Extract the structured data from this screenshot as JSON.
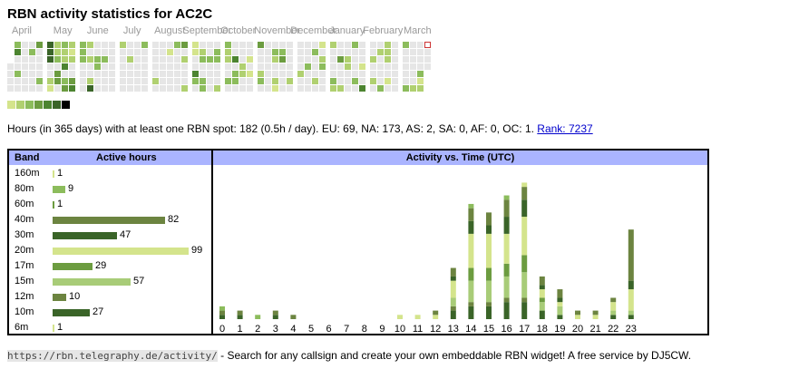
{
  "title": "RBN activity statistics for AC2C",
  "colors": {
    "empty": "#e6e6e6",
    "levels": [
      "#d4e48c",
      "#b0d070",
      "#8cbc5c",
      "#6c9c40",
      "#4c8430",
      "#3a6428",
      "#000000"
    ],
    "highlight": "#cc3333",
    "header": "#aab4ff",
    "link": "#0000cc"
  },
  "calendar": {
    "months": [
      "April",
      "May",
      "June",
      "July",
      "August",
      "September",
      "October",
      "November",
      "December",
      "January",
      "February",
      "March"
    ],
    "month_start_weeks": [
      0,
      5,
      9,
      14,
      18,
      23,
      27,
      31,
      36,
      40,
      45,
      49
    ],
    "week_count": 53,
    "first_weekday": 3,
    "days": 365,
    "today_index": 361,
    "active": [
      [
        4,
        3
      ],
      [
        5,
        5
      ],
      [
        8,
        3
      ],
      [
        19,
        3
      ],
      [
        25,
        4
      ],
      [
        30,
        3
      ],
      [
        32,
        6
      ],
      [
        33,
        6
      ],
      [
        34,
        6
      ],
      [
        37,
        2
      ],
      [
        38,
        1
      ],
      [
        39,
        2
      ],
      [
        40,
        2
      ],
      [
        41,
        3
      ],
      [
        43,
        4
      ],
      [
        44,
        4
      ],
      [
        46,
        3
      ],
      [
        47,
        2
      ],
      [
        48,
        2
      ],
      [
        49,
        5
      ],
      [
        51,
        3
      ],
      [
        52,
        4
      ],
      [
        53,
        2
      ],
      [
        54,
        1
      ],
      [
        55,
        2
      ],
      [
        58,
        4
      ],
      [
        59,
        5
      ],
      [
        60,
        3
      ],
      [
        61,
        3
      ],
      [
        62,
        3
      ],
      [
        67,
        2
      ],
      [
        69,
        2
      ],
      [
        72,
        2
      ],
      [
        73,
        6
      ],
      [
        76,
        3
      ],
      [
        77,
        3
      ],
      [
        83,
        3
      ],
      [
        95,
        2
      ],
      [
        104,
        2
      ],
      [
        116,
        3
      ],
      [
        128,
        2
      ],
      [
        138,
        1
      ],
      [
        144,
        3
      ],
      [
        151,
        4
      ],
      [
        153,
        2
      ],
      [
        157,
        2
      ],
      [
        158,
        1
      ],
      [
        159,
        1
      ],
      [
        162,
        5
      ],
      [
        163,
        3
      ],
      [
        166,
        2
      ],
      [
        167,
        3
      ],
      [
        170,
        3
      ],
      [
        171,
        3
      ],
      [
        174,
        3
      ],
      [
        180,
        3
      ],
      [
        181,
        3
      ],
      [
        185,
        2
      ],
      [
        186,
        3
      ],
      [
        187,
        2
      ],
      [
        188,
        2
      ],
      [
        191,
        3
      ],
      [
        195,
        5
      ],
      [
        197,
        3
      ],
      [
        198,
        3
      ],
      [
        203,
        2
      ],
      [
        204,
        2
      ],
      [
        209,
        1
      ],
      [
        211,
        1
      ],
      [
        214,
        4
      ],
      [
        218,
        2
      ],
      [
        219,
        3
      ],
      [
        229,
        3
      ],
      [
        230,
        2
      ],
      [
        233,
        2
      ],
      [
        234,
        1
      ],
      [
        236,
        3
      ],
      [
        237,
        4
      ],
      [
        247,
        2
      ],
      [
        253,
        2
      ],
      [
        259,
        3
      ],
      [
        264,
        3
      ],
      [
        268,
        2
      ],
      [
        270,
        1
      ],
      [
        272,
        2
      ],
      [
        273,
        3
      ],
      [
        277,
        2
      ],
      [
        282,
        3
      ],
      [
        283,
        2
      ],
      [
        286,
        4
      ],
      [
        290,
        2
      ],
      [
        293,
        2
      ],
      [
        294,
        2
      ],
      [
        298,
        3
      ],
      [
        303,
        3
      ],
      [
        308,
        1
      ],
      [
        311,
        5
      ],
      [
        314,
        2
      ],
      [
        317,
        2
      ],
      [
        320,
        2
      ],
      [
        325,
        3
      ],
      [
        326,
        2
      ],
      [
        327,
        2
      ],
      [
        328,
        2
      ],
      [
        331,
        1
      ],
      [
        340,
        3
      ],
      [
        346,
        3
      ],
      [
        353,
        2
      ],
      [
        358,
        3
      ],
      [
        359,
        1
      ],
      [
        360,
        2
      ]
    ]
  },
  "summary": {
    "text": "Hours (in 365 days) with at least one RBN spot: 182 (0.5h / day). EU: 69, NA: 173, AS: 2, SA: 0, AF: 0, OC: 1.",
    "rank_label": "Rank: 7237"
  },
  "bands_table": {
    "header_band": "Band",
    "header_hours": "Active hours",
    "max_hours": 99,
    "bands": [
      {
        "name": "160m",
        "hours": 1,
        "color": "#d4e48c"
      },
      {
        "name": "80m",
        "hours": 9,
        "color": "#8cbc5c"
      },
      {
        "name": "60m",
        "hours": 1,
        "color": "#6c9c40"
      },
      {
        "name": "40m",
        "hours": 82,
        "color": "#6c8440"
      },
      {
        "name": "30m",
        "hours": 47,
        "color": "#3a6428"
      },
      {
        "name": "20m",
        "hours": 99,
        "color": "#d4e48c"
      },
      {
        "name": "17m",
        "hours": 29,
        "color": "#6c9c40"
      },
      {
        "name": "15m",
        "hours": 57,
        "color": "#a8cc78"
      },
      {
        "name": "12m",
        "hours": 10,
        "color": "#6c8440"
      },
      {
        "name": "10m",
        "hours": 27,
        "color": "#3a6428"
      },
      {
        "name": "6m",
        "hours": 1,
        "color": "#d4e48c"
      }
    ]
  },
  "chart_data": {
    "type": "bar",
    "title": "Activity vs. Time (UTC)",
    "xlabel": "",
    "ylabel": "",
    "categories": [
      "0",
      "1",
      "2",
      "3",
      "4",
      "5",
      "6",
      "7",
      "8",
      "9",
      "10",
      "11",
      "12",
      "13",
      "14",
      "15",
      "16",
      "17",
      "18",
      "19",
      "20",
      "21",
      "22",
      "23"
    ],
    "ylim": [
      0,
      34
    ],
    "series": [
      {
        "name": "10m",
        "color": "#3a6428",
        "values": [
          0,
          0,
          0,
          0,
          0,
          0,
          0,
          0,
          0,
          0,
          0,
          0,
          0,
          2,
          3,
          3,
          4,
          4,
          2,
          1,
          0,
          0,
          1,
          1
        ]
      },
      {
        "name": "12m",
        "color": "#6c8440",
        "values": [
          0,
          0,
          0,
          0,
          0,
          0,
          0,
          0,
          0,
          0,
          0,
          0,
          0,
          1,
          1,
          1,
          1,
          1,
          0,
          0,
          0,
          0,
          0,
          0
        ]
      },
      {
        "name": "15m",
        "color": "#a8cc78",
        "values": [
          0,
          0,
          0,
          0,
          0,
          0,
          0,
          0,
          0,
          0,
          0,
          0,
          0,
          2,
          5,
          5,
          5,
          6,
          2,
          2,
          0,
          0,
          1,
          1
        ]
      },
      {
        "name": "17m",
        "color": "#6c9c40",
        "values": [
          0,
          0,
          0,
          0,
          0,
          0,
          0,
          0,
          0,
          0,
          0,
          0,
          0,
          0,
          3,
          3,
          3,
          4,
          1,
          0,
          0,
          0,
          0,
          0
        ]
      },
      {
        "name": "20m",
        "color": "#d4e48c",
        "values": [
          0,
          0,
          0,
          0,
          0,
          0,
          0,
          0,
          0,
          0,
          1,
          1,
          1,
          4,
          8,
          8,
          7,
          9,
          2,
          1,
          1,
          1,
          2,
          5
        ]
      },
      {
        "name": "30m",
        "color": "#3a6428",
        "values": [
          1,
          1,
          0,
          1,
          0,
          0,
          0,
          0,
          0,
          0,
          0,
          0,
          0,
          1,
          3,
          2,
          4,
          4,
          1,
          1,
          0,
          0,
          0,
          2
        ]
      },
      {
        "name": "40m",
        "color": "#6c8440",
        "values": [
          1,
          1,
          0,
          1,
          1,
          0,
          0,
          0,
          0,
          0,
          0,
          0,
          1,
          2,
          3,
          3,
          4,
          3,
          2,
          2,
          1,
          1,
          1,
          12
        ]
      },
      {
        "name": "80m",
        "color": "#8cbc5c",
        "values": [
          1,
          0,
          1,
          0,
          0,
          0,
          0,
          0,
          0,
          0,
          0,
          0,
          0,
          0,
          1,
          0,
          1,
          0,
          0,
          0,
          0,
          0,
          0,
          0
        ]
      },
      {
        "name": "160m",
        "color": "#d4e48c",
        "values": [
          0,
          0,
          0,
          0,
          0,
          0,
          0,
          0,
          0,
          0,
          0,
          0,
          0,
          0,
          0,
          0,
          0,
          1,
          0,
          0,
          0,
          0,
          0,
          0
        ]
      }
    ]
  },
  "footer": {
    "url": "https://rbn.telegraphy.de/activity/",
    "text": " - Search for any callsign and create your own embeddable RBN widget! A free service by DJ5CW."
  }
}
